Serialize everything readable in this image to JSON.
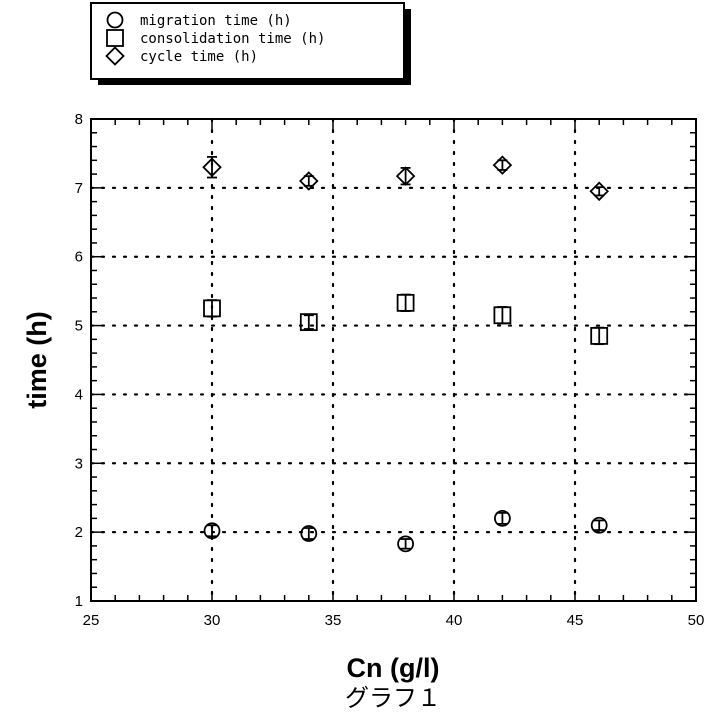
{
  "chart_data": {
    "type": "scatter",
    "xlabel": "Cn (g/l)",
    "ylabel": "time (h)",
    "caption": "グラフ１",
    "xlim": [
      25,
      50
    ],
    "ylim": [
      1,
      8
    ],
    "xticks": [
      25,
      30,
      35,
      40,
      45,
      50
    ],
    "yticks": [
      1,
      2,
      3,
      4,
      5,
      6,
      7,
      8
    ],
    "grid": true,
    "legend_position": "top-left",
    "series": [
      {
        "name": "migration time (h)",
        "marker": "circle",
        "x": [
          30,
          34,
          38,
          42,
          46
        ],
        "y": [
          2.02,
          1.98,
          1.83,
          2.2,
          2.1
        ],
        "err": [
          0.08,
          0.08,
          0.07,
          0.08,
          0.07
        ]
      },
      {
        "name": "consolidation time (h)",
        "marker": "square",
        "x": [
          30,
          34,
          38,
          42,
          46
        ],
        "y": [
          5.25,
          5.05,
          5.33,
          5.15,
          4.85
        ],
        "err": [
          0.12,
          0.1,
          0.12,
          0.12,
          0.12
        ]
      },
      {
        "name": "cycle time (h)",
        "marker": "diamond",
        "x": [
          30,
          34,
          38,
          42,
          46
        ],
        "y": [
          7.3,
          7.1,
          7.17,
          7.33,
          6.95
        ],
        "err": [
          0.15,
          0.07,
          0.12,
          0.07,
          0.06
        ]
      }
    ]
  }
}
